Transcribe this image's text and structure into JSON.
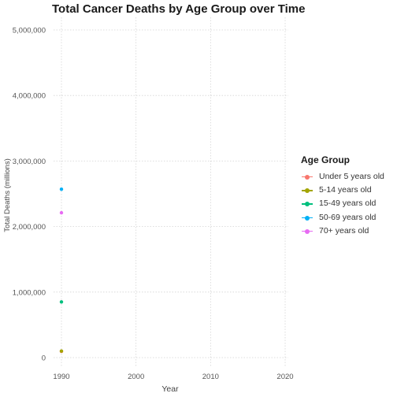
{
  "chart_data": {
    "type": "line",
    "title": "Total Cancer Deaths by Age Group over Time",
    "xlabel": "Year",
    "ylabel": "Total Deaths (millions)",
    "x": [
      1990
    ],
    "xlim": [
      1990,
      2020
    ],
    "ylim": [
      0,
      5000000
    ],
    "x_ticks": [
      1990,
      2000,
      2010,
      2020
    ],
    "x_tick_labels": [
      "1990",
      "2000",
      "2010",
      "2020"
    ],
    "y_ticks": [
      0,
      1000000,
      2000000,
      3000000,
      4000000,
      5000000
    ],
    "y_tick_labels": [
      "0",
      "1,000,000",
      "2,000,000",
      "3,000,000",
      "4,000,000",
      "5,000,000"
    ],
    "grid": true,
    "legend_title": "Age Group",
    "legend_position": "right",
    "series": [
      {
        "name": "Under 5 years old",
        "color": "#F8766D",
        "values": [
          95000
        ]
      },
      {
        "name": "5-14 years old",
        "color": "#A3A500",
        "values": [
          100000
        ]
      },
      {
        "name": "15-49 years old",
        "color": "#00BF7D",
        "values": [
          850000
        ]
      },
      {
        "name": "50-69 years old",
        "color": "#00B0F6",
        "values": [
          2570000
        ]
      },
      {
        "name": "70+ years old",
        "color": "#E76BF3",
        "values": [
          2210000
        ]
      }
    ]
  }
}
